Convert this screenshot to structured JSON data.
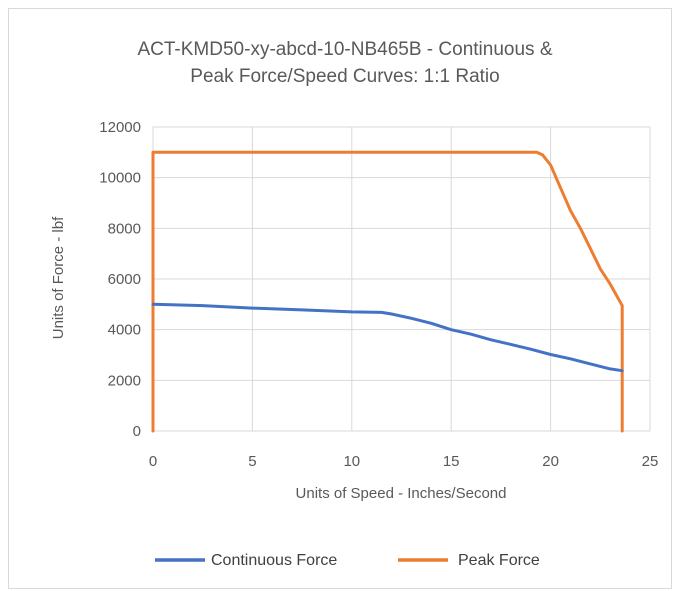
{
  "chart_data": {
    "type": "line",
    "title_lines": [
      "ACT-KMD50-xy-abcd-10-NB465B - Continuous &",
      "Peak Force/Speed Curves: 1:1 Ratio"
    ],
    "xlabel": "Units of Speed - Inches/Second",
    "ylabel": "Units of Force - lbf",
    "xlim": [
      0,
      25
    ],
    "ylim": [
      0,
      12000
    ],
    "x_ticks": [
      "0",
      "5",
      "10",
      "15",
      "20",
      "25"
    ],
    "y_ticks": [
      "0",
      "2000",
      "4000",
      "6000",
      "8000",
      "10000",
      "12000"
    ],
    "grid": "both",
    "legend_position": "bottom",
    "series": [
      {
        "name": "Continuous Force",
        "color": "#4472C4",
        "x": [
          0,
          2.5,
          5,
          7.5,
          10,
          11.5,
          12,
          13,
          14,
          15,
          16,
          17,
          18,
          19,
          20,
          21,
          22,
          23,
          23.6
        ],
        "y": [
          5000,
          4950,
          4850,
          4780,
          4700,
          4680,
          4620,
          4450,
          4250,
          4000,
          3820,
          3600,
          3420,
          3230,
          3020,
          2850,
          2650,
          2450,
          2380
        ]
      },
      {
        "name": "Peak Force",
        "color": "#ED7D31",
        "x": [
          0,
          0,
          19.3,
          19.6,
          20,
          20.5,
          21,
          21.5,
          22,
          22.5,
          23,
          23.6,
          23.6
        ],
        "y": [
          0,
          11000,
          11000,
          10900,
          10500,
          9600,
          8700,
          8000,
          7200,
          6400,
          5800,
          4950,
          0
        ]
      }
    ]
  }
}
